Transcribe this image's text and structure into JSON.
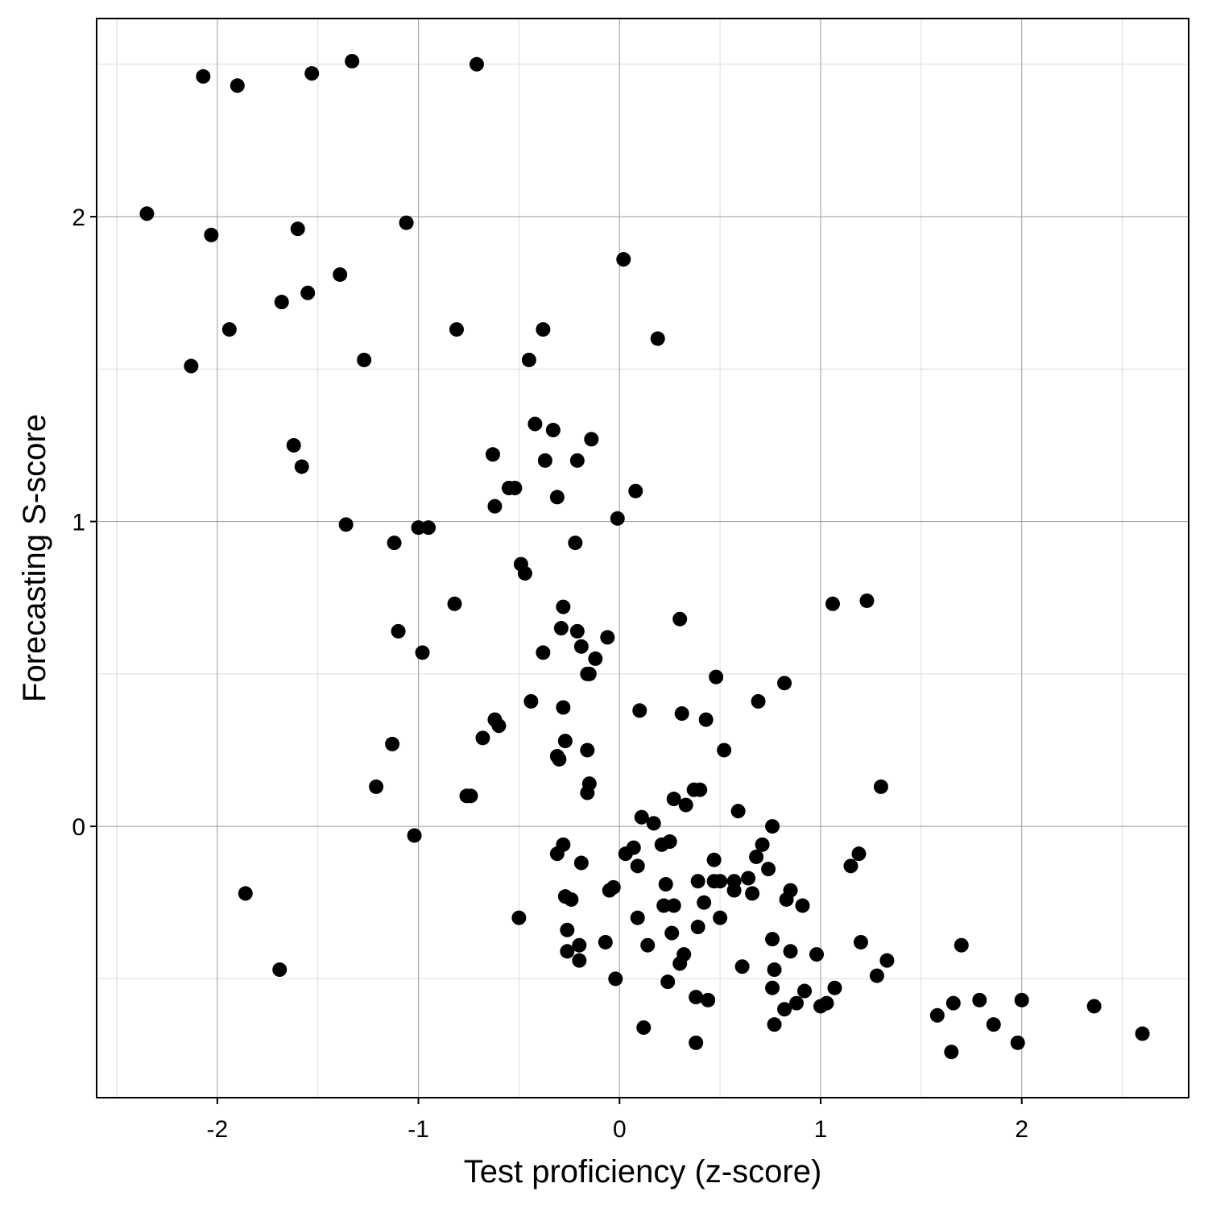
{
  "chart_data": {
    "type": "scatter",
    "xlabel": "Test proficiency (z-score)",
    "ylabel": "Forecasting S-score",
    "xlim": [
      -2.6,
      2.83
    ],
    "ylim": [
      -0.89,
      2.65
    ],
    "x_ticks": [
      -2,
      -1,
      0,
      1,
      2
    ],
    "x_tick_labels": [
      "-2",
      "-1",
      "0",
      "1",
      "2"
    ],
    "y_ticks": [
      0,
      1,
      2
    ],
    "y_tick_labels": [
      "0",
      "1",
      "2"
    ],
    "x_minor_ticks": [
      -2.5,
      -1.5,
      -0.5,
      0.5,
      1.5,
      2.5
    ],
    "y_minor_ticks": [
      -0.5,
      0.5,
      1.5,
      2.5
    ],
    "grid": true,
    "point_color": "#000000",
    "points": [
      [
        -2.07,
        2.46
      ],
      [
        -1.9,
        2.43
      ],
      [
        -1.53,
        2.47
      ],
      [
        -1.33,
        2.51
      ],
      [
        -0.71,
        2.5
      ],
      [
        -2.35,
        2.01
      ],
      [
        -2.03,
        1.94
      ],
      [
        -1.6,
        1.96
      ],
      [
        -1.06,
        1.98
      ],
      [
        -1.39,
        1.81
      ],
      [
        0.02,
        1.86
      ],
      [
        -1.68,
        1.72
      ],
      [
        -1.55,
        1.75
      ],
      [
        -1.94,
        1.63
      ],
      [
        -0.81,
        1.63
      ],
      [
        -0.38,
        1.63
      ],
      [
        0.19,
        1.6
      ],
      [
        -2.13,
        1.51
      ],
      [
        -1.27,
        1.53
      ],
      [
        -0.45,
        1.53
      ],
      [
        -0.42,
        1.32
      ],
      [
        -0.33,
        1.3
      ],
      [
        -1.62,
        1.25
      ],
      [
        -0.63,
        1.22
      ],
      [
        -0.37,
        1.2
      ],
      [
        -0.21,
        1.2
      ],
      [
        -0.14,
        1.27
      ],
      [
        -1.58,
        1.18
      ],
      [
        -0.55,
        1.11
      ],
      [
        -0.52,
        1.11
      ],
      [
        -0.31,
        1.08
      ],
      [
        0.08,
        1.1
      ],
      [
        -0.62,
        1.05
      ],
      [
        -1.36,
        0.99
      ],
      [
        -1.0,
        0.98
      ],
      [
        -0.95,
        0.98
      ],
      [
        -0.01,
        1.01
      ],
      [
        -1.12,
        0.93
      ],
      [
        -0.22,
        0.93
      ],
      [
        -0.49,
        0.86
      ],
      [
        -0.47,
        0.83
      ],
      [
        -0.82,
        0.73
      ],
      [
        -0.28,
        0.72
      ],
      [
        1.06,
        0.73
      ],
      [
        1.23,
        0.74
      ],
      [
        0.3,
        0.68
      ],
      [
        -1.1,
        0.64
      ],
      [
        -0.29,
        0.65
      ],
      [
        -0.21,
        0.64
      ],
      [
        -0.19,
        0.59
      ],
      [
        -0.06,
        0.62
      ],
      [
        -0.98,
        0.57
      ],
      [
        -0.38,
        0.57
      ],
      [
        -0.12,
        0.55
      ],
      [
        -0.16,
        0.5
      ],
      [
        -0.15,
        0.5
      ],
      [
        0.48,
        0.49
      ],
      [
        0.82,
        0.47
      ],
      [
        -0.44,
        0.41
      ],
      [
        -0.28,
        0.39
      ],
      [
        0.1,
        0.38
      ],
      [
        0.31,
        0.37
      ],
      [
        0.43,
        0.35
      ],
      [
        0.69,
        0.41
      ],
      [
        -0.62,
        0.35
      ],
      [
        -0.6,
        0.33
      ],
      [
        -0.68,
        0.29
      ],
      [
        -1.13,
        0.27
      ],
      [
        -0.27,
        0.28
      ],
      [
        -0.31,
        0.23
      ],
      [
        -0.3,
        0.22
      ],
      [
        -0.16,
        0.25
      ],
      [
        0.52,
        0.25
      ],
      [
        -1.21,
        0.13
      ],
      [
        -0.76,
        0.1
      ],
      [
        -0.74,
        0.1
      ],
      [
        -0.15,
        0.14
      ],
      [
        -0.16,
        0.11
      ],
      [
        0.27,
        0.09
      ],
      [
        0.33,
        0.07
      ],
      [
        0.37,
        0.12
      ],
      [
        0.4,
        0.12
      ],
      [
        1.3,
        0.13
      ],
      [
        0.59,
        0.05
      ],
      [
        0.11,
        0.03
      ],
      [
        0.17,
        0.01
      ],
      [
        0.76,
        0.0
      ],
      [
        -1.02,
        -0.03
      ],
      [
        -0.28,
        -0.06
      ],
      [
        -0.31,
        -0.09
      ],
      [
        0.03,
        -0.09
      ],
      [
        0.07,
        -0.07
      ],
      [
        0.21,
        -0.06
      ],
      [
        0.25,
        -0.05
      ],
      [
        0.47,
        -0.11
      ],
      [
        0.68,
        -0.1
      ],
      [
        0.71,
        -0.06
      ],
      [
        1.19,
        -0.09
      ],
      [
        -0.19,
        -0.12
      ],
      [
        0.09,
        -0.13
      ],
      [
        0.74,
        -0.14
      ],
      [
        1.15,
        -0.13
      ],
      [
        0.23,
        -0.19
      ],
      [
        0.39,
        -0.18
      ],
      [
        0.47,
        -0.18
      ],
      [
        0.5,
        -0.18
      ],
      [
        0.57,
        -0.18
      ],
      [
        0.64,
        -0.17
      ],
      [
        -1.86,
        -0.22
      ],
      [
        -0.27,
        -0.23
      ],
      [
        -0.24,
        -0.24
      ],
      [
        -0.05,
        -0.21
      ],
      [
        -0.03,
        -0.2
      ],
      [
        0.22,
        -0.26
      ],
      [
        0.27,
        -0.26
      ],
      [
        0.42,
        -0.25
      ],
      [
        0.57,
        -0.21
      ],
      [
        0.66,
        -0.22
      ],
      [
        0.83,
        -0.24
      ],
      [
        0.85,
        -0.21
      ],
      [
        0.91,
        -0.26
      ],
      [
        -0.5,
        -0.3
      ],
      [
        0.09,
        -0.3
      ],
      [
        0.39,
        -0.33
      ],
      [
        0.5,
        -0.3
      ],
      [
        -0.26,
        -0.34
      ],
      [
        0.26,
        -0.35
      ],
      [
        -0.07,
        -0.38
      ],
      [
        0.14,
        -0.39
      ],
      [
        -0.2,
        -0.39
      ],
      [
        0.32,
        -0.42
      ],
      [
        0.76,
        -0.37
      ],
      [
        0.85,
        -0.41
      ],
      [
        0.98,
        -0.42
      ],
      [
        1.2,
        -0.38
      ],
      [
        1.7,
        -0.39
      ],
      [
        -0.26,
        -0.41
      ],
      [
        -0.2,
        -0.44
      ],
      [
        0.3,
        -0.45
      ],
      [
        0.61,
        -0.46
      ],
      [
        0.77,
        -0.47
      ],
      [
        1.33,
        -0.44
      ],
      [
        -1.69,
        -0.47
      ],
      [
        -0.02,
        -0.5
      ],
      [
        0.24,
        -0.51
      ],
      [
        0.76,
        -0.53
      ],
      [
        1.28,
        -0.49
      ],
      [
        0.38,
        -0.56
      ],
      [
        0.44,
        -0.57
      ],
      [
        0.82,
        -0.6
      ],
      [
        0.88,
        -0.58
      ],
      [
        0.92,
        -0.54
      ],
      [
        1.0,
        -0.59
      ],
      [
        1.03,
        -0.58
      ],
      [
        1.07,
        -0.53
      ],
      [
        1.58,
        -0.62
      ],
      [
        1.66,
        -0.58
      ],
      [
        1.79,
        -0.57
      ],
      [
        2.0,
        -0.57
      ],
      [
        2.36,
        -0.59
      ],
      [
        0.12,
        -0.66
      ],
      [
        0.77,
        -0.65
      ],
      [
        1.86,
        -0.65
      ],
      [
        2.6,
        -0.68
      ],
      [
        0.38,
        -0.71
      ],
      [
        1.65,
        -0.74
      ],
      [
        1.98,
        -0.71
      ]
    ]
  }
}
